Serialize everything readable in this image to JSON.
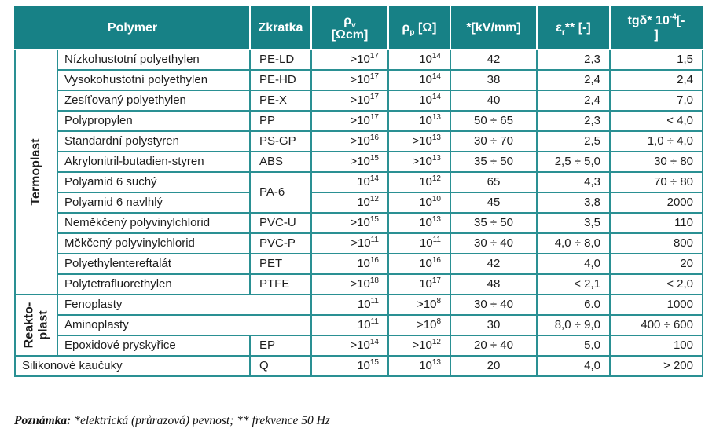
{
  "table": {
    "header": {
      "columns": [
        {
          "key": "polymer",
          "label": "Polymer",
          "colspan": 2
        },
        {
          "key": "zkratka",
          "label": "Zkratka"
        },
        {
          "key": "rho-v",
          "label": "ρ_{v}\n[Ωcm]"
        },
        {
          "key": "rho-p",
          "label": "ρ_{p} [Ω]"
        },
        {
          "key": "strength",
          "label": "*[kV/mm]"
        },
        {
          "key": "eps-r",
          "label": "ε_{r}** [-]"
        },
        {
          "key": "tgd",
          "label": "tgδ* 10^{-4}[-\n]"
        }
      ]
    },
    "rows": [
      {
        "category": {
          "label": "Termoplast",
          "rowspan": 12
        },
        "name": "Nízkohustotní polyethylen",
        "abbr": "PE-LD",
        "rho_v": ">10^{17}",
        "rho_p": "10^{14}",
        "strength": "42",
        "eps": "2,3",
        "tgd": "1,5"
      },
      {
        "name": "Vysokohustotní polyethylen",
        "abbr": "PE-HD",
        "rho_v": ">10^{17}",
        "rho_p": "10^{14}",
        "strength": "38",
        "eps": "2,4",
        "tgd": "2,4"
      },
      {
        "name": "Zesíťovaný polyethylen",
        "abbr": "PE-X",
        "rho_v": ">10^{17}",
        "rho_p": "10^{14}",
        "strength": "40",
        "eps": "2,4",
        "tgd": "7,0"
      },
      {
        "name": "Polypropylen",
        "abbr": "PP",
        "rho_v": ">10^{17}",
        "rho_p": "10^{13}",
        "strength": "50 ÷ 65",
        "eps": "2,3",
        "tgd": "< 4,0"
      },
      {
        "name": "Standardní polystyren",
        "abbr": "PS-GP",
        "rho_v": ">10^{16}",
        "rho_p": ">10^{13}",
        "strength": "30 ÷ 70",
        "eps": "2,5",
        "tgd": "1,0 ÷ 4,0"
      },
      {
        "name": "Akrylonitril-butadien-styren",
        "abbr": "ABS",
        "rho_v": ">10^{15}",
        "rho_p": ">10^{13}",
        "strength": "35 ÷ 50",
        "eps": "2,5 ÷ 5,0",
        "tgd": "30 ÷ 80"
      },
      {
        "name": "Polyamid 6 suchý",
        "abbr": "PA-6",
        "abbr_rowspan": 2,
        "rho_v": "10^{14}",
        "rho_p": "10^{12}",
        "strength": "65",
        "eps": "4,3",
        "tgd": "70 ÷ 80"
      },
      {
        "name": "Polyamid 6 navlhlý",
        "abbr": null,
        "rho_v": "10^{12}",
        "rho_p": "10^{10}",
        "strength": "45",
        "eps": "3,8",
        "tgd": "2000"
      },
      {
        "name": "Neměkčený polyvinylchlorid",
        "abbr": "PVC-U",
        "rho_v": ">10^{15}",
        "rho_p": "10^{13}",
        "strength": "35 ÷ 50",
        "eps": "3,5",
        "tgd": "110"
      },
      {
        "name": "Měkčený polyvinylchlorid",
        "abbr": "PVC-P",
        "rho_v": ">10^{11}",
        "rho_p": "10^{11}",
        "strength": "30 ÷ 40",
        "eps": "4,0 ÷ 8,0",
        "tgd": "800"
      },
      {
        "name": "Polyethylentereftalát",
        "abbr": "PET",
        "rho_v": "10^{16}",
        "rho_p": "10^{16}",
        "strength": "42",
        "eps": "4,0",
        "tgd": "20"
      },
      {
        "name": "Polytetrafluorethylen",
        "abbr": "PTFE",
        "rho_v": ">10^{18}",
        "rho_p": "10^{17}",
        "strength": "48",
        "eps": "< 2,1",
        "tgd": "< 2,0"
      },
      {
        "category": {
          "label": "Reakto-\nplast",
          "rowspan": 3
        },
        "name": "Fenoplasty",
        "merge_abbr": true,
        "rho_v": "10^{11}",
        "rho_p": ">10^{8}",
        "strength": "30 ÷ 40",
        "eps": "6.0",
        "tgd": "1000"
      },
      {
        "name": "Aminoplasty",
        "merge_abbr": true,
        "rho_v": "10^{11}",
        "rho_p": ">10^{8}",
        "strength": "30",
        "eps": "8,0 ÷ 9,0",
        "tgd": "400 ÷ 600"
      },
      {
        "name": "Epoxidové pryskyřice",
        "abbr": "EP",
        "rho_v": ">10^{14}",
        "rho_p": ">10^{12}",
        "strength": "20 ÷ 40",
        "eps": "5,0",
        "tgd": "100"
      },
      {
        "name": "Silikonové kaučuky",
        "merge_category": true,
        "abbr": "Q",
        "rho_v": "10^{15}",
        "rho_p": "10^{13}",
        "strength": "20",
        "eps": "4,0",
        "tgd": "> 200"
      }
    ]
  },
  "footnote": {
    "prefix": "Poznámka:",
    "text": " *elektrická (průrazová) pevnost; ** frekvence 50 Hz"
  },
  "colors": {
    "header_teal": "#178186",
    "border_teal": "#2a9093",
    "abbr_beige": "#eceadd"
  }
}
